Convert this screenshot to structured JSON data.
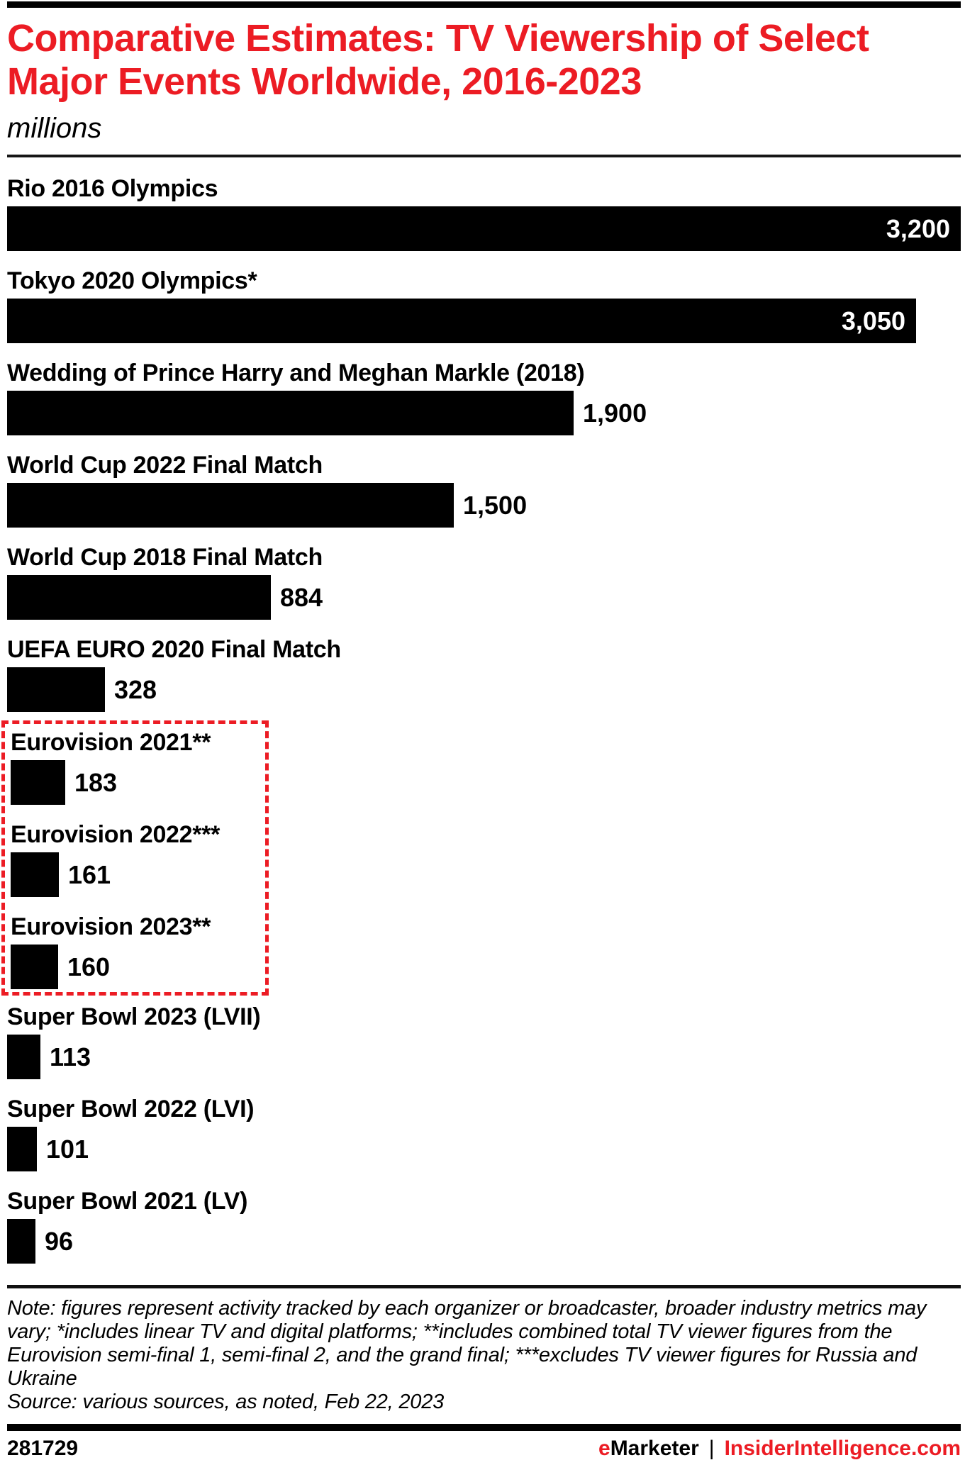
{
  "header": {
    "title": "Comparative Estimates: TV Viewership of Select Major Events Worldwide, 2016-2023",
    "subtitle": "millions"
  },
  "chart_data": {
    "type": "bar",
    "orientation": "horizontal",
    "unit": "millions",
    "title": "Comparative Estimates: TV Viewership of Select Major Events Worldwide, 2016-2023",
    "xlim": [
      0,
      3200
    ],
    "grid": false,
    "legend": false,
    "categories": [
      "Rio 2016 Olympics",
      "Tokyo 2020 Olympics*",
      "Wedding of Prince Harry and Meghan Markle (2018)",
      "World Cup 2022 Final Match",
      "World Cup 2018 Final Match",
      "UEFA EURO 2020 Final Match",
      "Eurovision 2021**",
      "Eurovision 2022***",
      "Eurovision 2023**",
      "Super Bowl 2023 (LVII)",
      "Super Bowl 2022 (LVI)",
      "Super Bowl 2021 (LV)"
    ],
    "values": [
      3200,
      3050,
      1900,
      1500,
      884,
      328,
      183,
      161,
      160,
      113,
      101,
      96
    ],
    "value_labels": [
      "3,200",
      "3,050",
      "1,900",
      "1,500",
      "884",
      "328",
      "183",
      "161",
      "160",
      "113",
      "101",
      "96"
    ],
    "value_inside_bar": [
      true,
      true,
      false,
      false,
      false,
      false,
      false,
      false,
      false,
      false,
      false,
      false
    ],
    "highlight_indices": [
      6,
      7,
      8
    ],
    "highlight_style": "red-dashed-box"
  },
  "footer": {
    "note": "Note: figures represent activity tracked by each organizer or broadcaster, broader industry metrics may vary; *includes linear TV and digital platforms; **includes combined total TV viewer figures from the Eurovision semi-final 1, semi-final 2, and the grand final; ***excludes TV viewer figures for Russia and Ukraine",
    "source": "Source: various sources, as noted, Feb 22, 2023",
    "chart_id": "281729",
    "brand_e": "e",
    "brand_marketer": "Marketer",
    "separator": "|",
    "url": "InsiderIntelligence.com"
  },
  "colors": {
    "accent_red": "#EC1C24",
    "bar_black": "#000000",
    "value_inside_text": "#FFFFFF"
  }
}
